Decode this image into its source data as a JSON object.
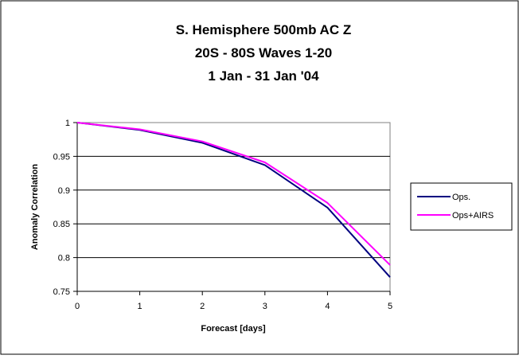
{
  "chart_data": {
    "type": "line",
    "title": [
      "S. Hemisphere 500mb AC Z",
      "20S - 80S   Waves 1-20",
      "1 Jan - 31 Jan '04"
    ],
    "xlabel": "Forecast [days]",
    "ylabel": "Anomaly Correlation",
    "x": [
      0,
      1,
      2,
      3,
      4,
      5
    ],
    "xlim": [
      0,
      5
    ],
    "ylim": [
      0.75,
      1.0
    ],
    "xticks": [
      "0",
      "1",
      "2",
      "3",
      "4",
      "5"
    ],
    "yticks": [
      "0.75",
      "0.8",
      "0.85",
      "0.9",
      "0.95",
      "1"
    ],
    "grid": "horizontal",
    "legend_position": "right",
    "series": [
      {
        "name": "Ops.",
        "color": "#000080",
        "values": [
          1.0,
          0.989,
          0.97,
          0.937,
          0.874,
          0.771
        ]
      },
      {
        "name": "Ops+AIRS",
        "color": "#FF00FF",
        "values": [
          1.0,
          0.99,
          0.972,
          0.941,
          0.881,
          0.789
        ]
      }
    ]
  }
}
